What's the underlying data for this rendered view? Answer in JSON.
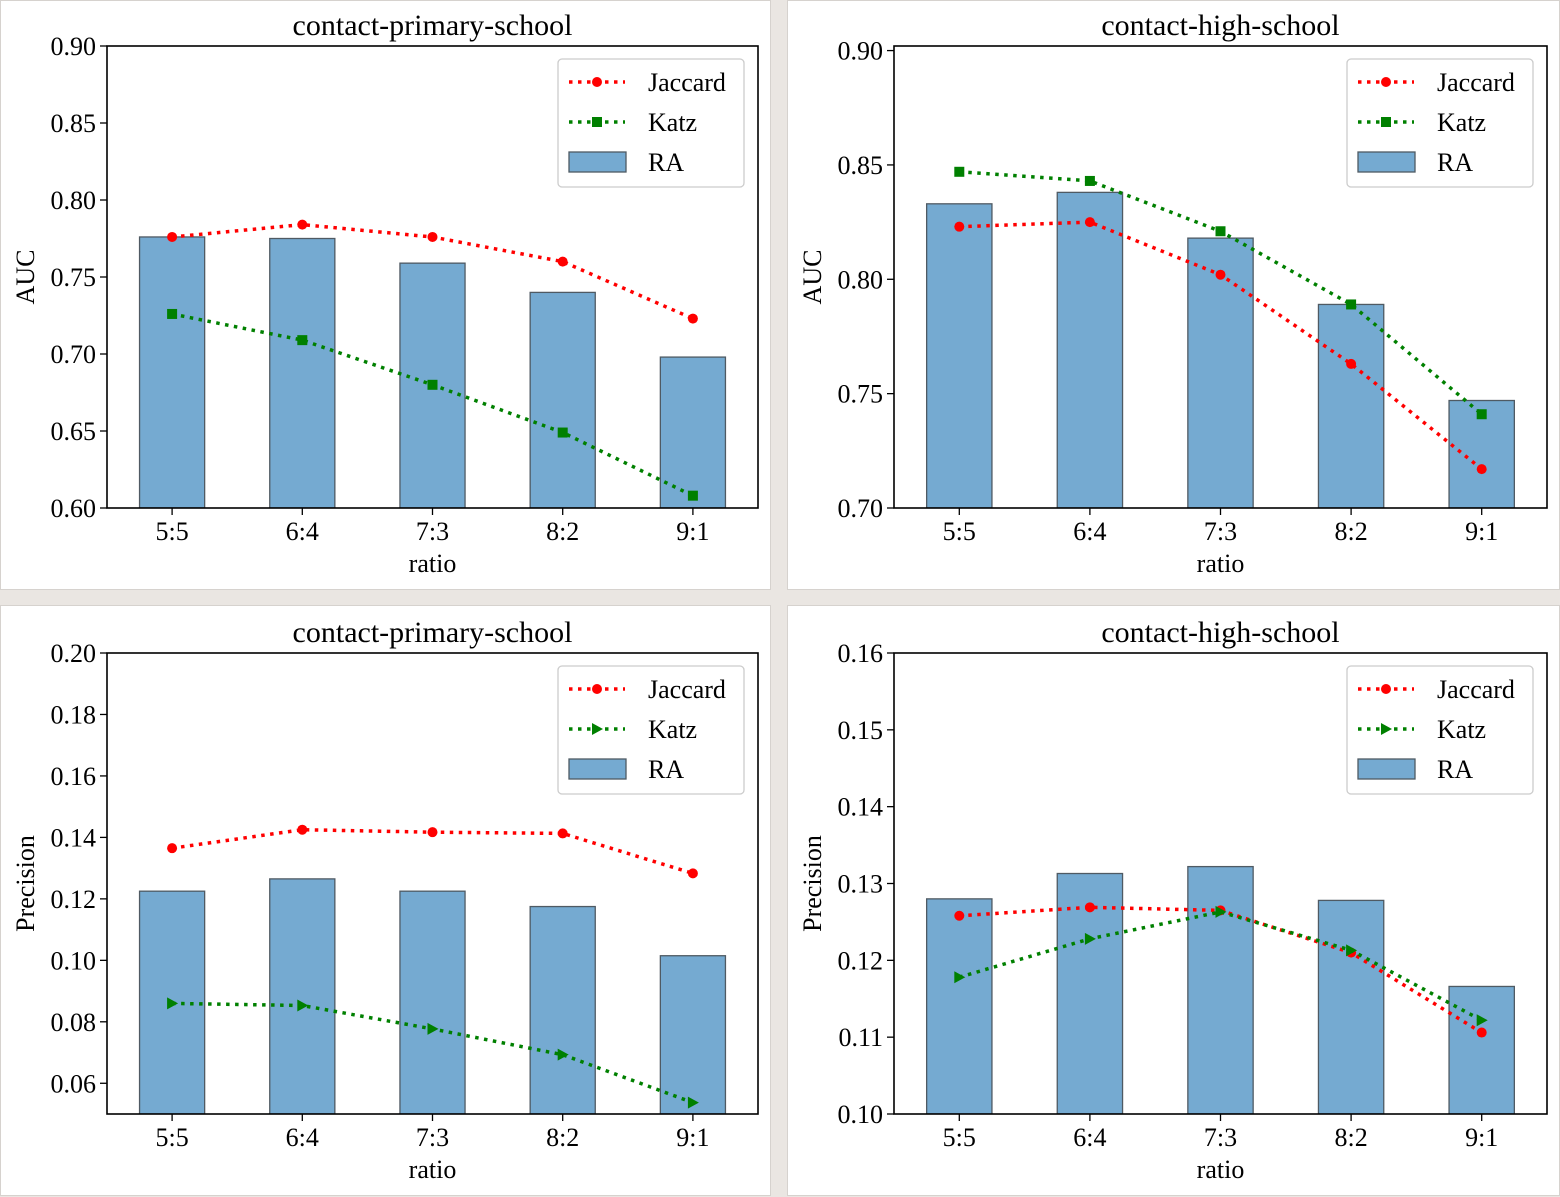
{
  "colors": {
    "bar_fill": "#75aad1",
    "bar_edge": "#4f5a63",
    "jaccard": "#ff0000",
    "katz": "#008000",
    "background": "#ffffff"
  },
  "chart_data": [
    {
      "type": "bar",
      "title": "contact-primary-school",
      "xlabel": "ratio",
      "ylabel": "AUC",
      "categories": [
        "5:5",
        "6:4",
        "7:3",
        "8:2",
        "9:1"
      ],
      "ylim": [
        0.6,
        0.9
      ],
      "yticks": [
        "0.60",
        "0.65",
        "0.70",
        "0.75",
        "0.80",
        "0.85",
        "0.90"
      ],
      "legend_position": "top-right",
      "katz_marker": "square",
      "series": [
        {
          "name": "Jaccard",
          "kind": "line",
          "values": [
            0.776,
            0.784,
            0.776,
            0.76,
            0.723
          ]
        },
        {
          "name": "Katz",
          "kind": "line",
          "values": [
            0.726,
            0.709,
            0.68,
            0.649,
            0.608
          ]
        },
        {
          "name": "RA",
          "kind": "bar",
          "values": [
            0.776,
            0.775,
            0.759,
            0.74,
            0.698
          ]
        }
      ]
    },
    {
      "type": "bar",
      "title": "contact-high-school",
      "xlabel": "ratio",
      "ylabel": "AUC",
      "categories": [
        "5:5",
        "6:4",
        "7:3",
        "8:2",
        "9:1"
      ],
      "ylim": [
        0.7,
        0.902
      ],
      "yticks": [
        "0.70",
        "0.75",
        "0.80",
        "0.85",
        "0.90"
      ],
      "legend_position": "top-right",
      "katz_marker": "square",
      "series": [
        {
          "name": "Jaccard",
          "kind": "line",
          "values": [
            0.823,
            0.825,
            0.802,
            0.763,
            0.717
          ]
        },
        {
          "name": "Katz",
          "kind": "line",
          "values": [
            0.847,
            0.843,
            0.821,
            0.789,
            0.741
          ]
        },
        {
          "name": "RA",
          "kind": "bar",
          "values": [
            0.833,
            0.838,
            0.818,
            0.789,
            0.747
          ]
        }
      ]
    },
    {
      "type": "bar",
      "title": "contact-primary-school",
      "xlabel": "ratio",
      "ylabel": "Precision",
      "categories": [
        "5:5",
        "6:4",
        "7:3",
        "8:2",
        "9:1"
      ],
      "ylim": [
        0.05,
        0.2
      ],
      "yticks": [
        "0.06",
        "0.08",
        "0.10",
        "0.12",
        "0.14",
        "0.16",
        "0.18",
        "0.20"
      ],
      "legend_position": "top-right",
      "katz_marker": "triangle-right",
      "series": [
        {
          "name": "Jaccard",
          "kind": "line",
          "values": [
            0.1365,
            0.1425,
            0.1417,
            0.1413,
            0.1283
          ]
        },
        {
          "name": "Katz",
          "kind": "line",
          "values": [
            0.086,
            0.0853,
            0.0777,
            0.0693,
            0.0537
          ]
        },
        {
          "name": "RA",
          "kind": "bar",
          "values": [
            0.1225,
            0.1265,
            0.1225,
            0.1175,
            0.1015
          ]
        }
      ]
    },
    {
      "type": "bar",
      "title": "contact-high-school",
      "xlabel": "ratio",
      "ylabel": "Precision",
      "categories": [
        "5:5",
        "6:4",
        "7:3",
        "8:2",
        "9:1"
      ],
      "ylim": [
        0.1,
        0.16
      ],
      "yticks": [
        "0.10",
        "0.11",
        "0.12",
        "0.13",
        "0.14",
        "0.15",
        "0.16"
      ],
      "legend_position": "top-right",
      "katz_marker": "triangle-right",
      "series": [
        {
          "name": "Jaccard",
          "kind": "line",
          "values": [
            0.1258,
            0.1269,
            0.1265,
            0.121,
            0.1106
          ]
        },
        {
          "name": "Katz",
          "kind": "line",
          "values": [
            0.1178,
            0.1228,
            0.1263,
            0.1213,
            0.1122
          ]
        },
        {
          "name": "RA",
          "kind": "bar",
          "values": [
            0.128,
            0.1313,
            0.1322,
            0.1278,
            0.1166
          ]
        }
      ]
    }
  ]
}
